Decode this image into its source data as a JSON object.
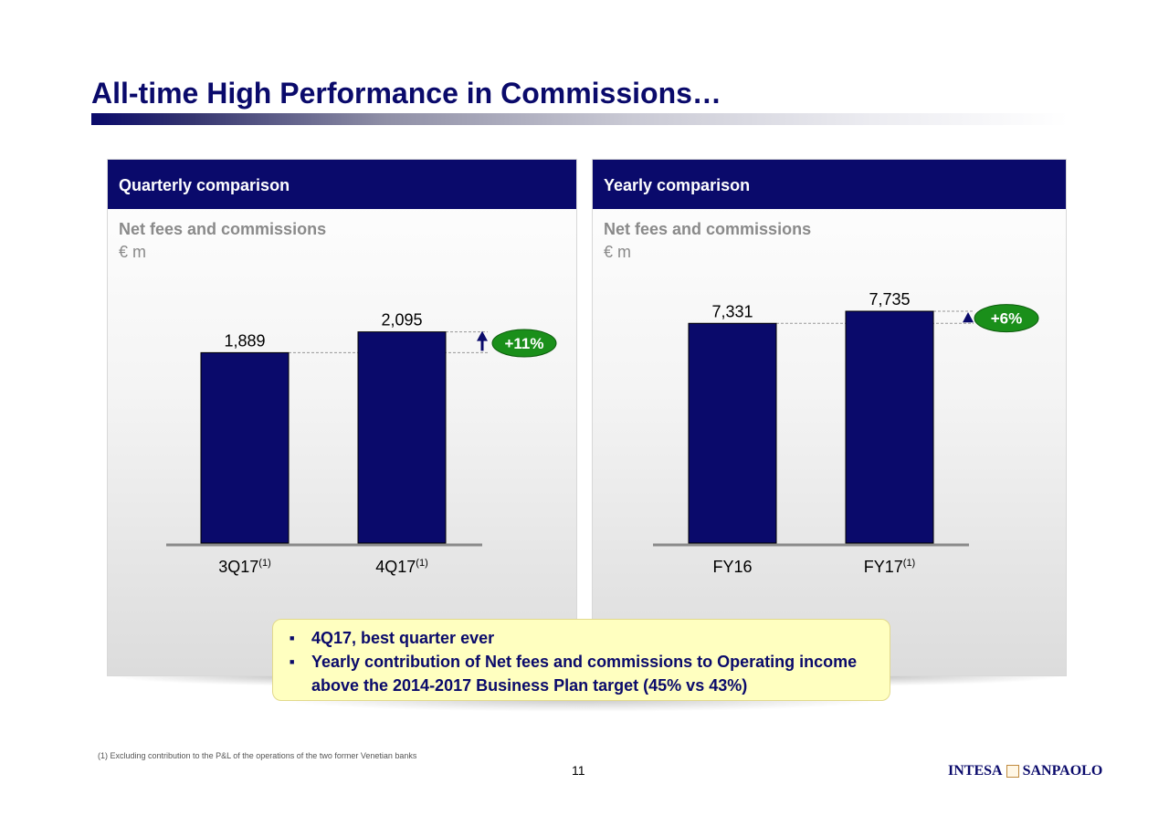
{
  "title": "All-time High Performance in Commissions…",
  "colors": {
    "navy": "#0a0a6b",
    "green": "#1a8f1a",
    "callout_bg": "#ffffc0"
  },
  "panels": [
    {
      "header": "Quarterly comparison",
      "subtitle": "Net fees and commissions",
      "unit": "€ m"
    },
    {
      "header": "Yearly comparison",
      "subtitle": "Net fees and commissions",
      "unit": "€ m"
    }
  ],
  "chart_data": [
    {
      "type": "bar",
      "title": "Net fees and commissions",
      "ylabel": "€ m",
      "categories": [
        "3Q17(1)",
        "4Q17(1)"
      ],
      "category_labels": [
        {
          "main": "3Q17",
          "sup": "(1)"
        },
        {
          "main": "4Q17",
          "sup": "(1)"
        }
      ],
      "values": [
        1889,
        2095
      ],
      "value_labels": [
        "1,889",
        "2,095"
      ],
      "change_label": "+11%",
      "change_icon": "arrow-up-icon",
      "ylim": [
        0,
        2300
      ],
      "grid": false,
      "legend": "none"
    },
    {
      "type": "bar",
      "title": "Net fees and commissions",
      "ylabel": "€ m",
      "categories": [
        "FY16",
        "FY17(1)"
      ],
      "category_labels": [
        {
          "main": "FY16",
          "sup": ""
        },
        {
          "main": "FY17",
          "sup": "(1)"
        }
      ],
      "values": [
        7331,
        7735
      ],
      "value_labels": [
        "7,331",
        "7,735"
      ],
      "change_label": "+6%",
      "change_icon": "triangle-up-icon",
      "ylim": [
        0,
        7735
      ],
      "grid": false,
      "legend": "none"
    }
  ],
  "callout": {
    "bullets": [
      "4Q17, best quarter ever",
      "Yearly contribution of Net fees and commissions to Operating income above the 2014-2017 Business Plan target (45% vs 43%)"
    ]
  },
  "footnote": "(1) Excluding contribution to the P&L of the operations of the two former Venetian banks",
  "page_number": "11",
  "logo": {
    "left": "INTESA",
    "right": "SANPAOLO"
  }
}
